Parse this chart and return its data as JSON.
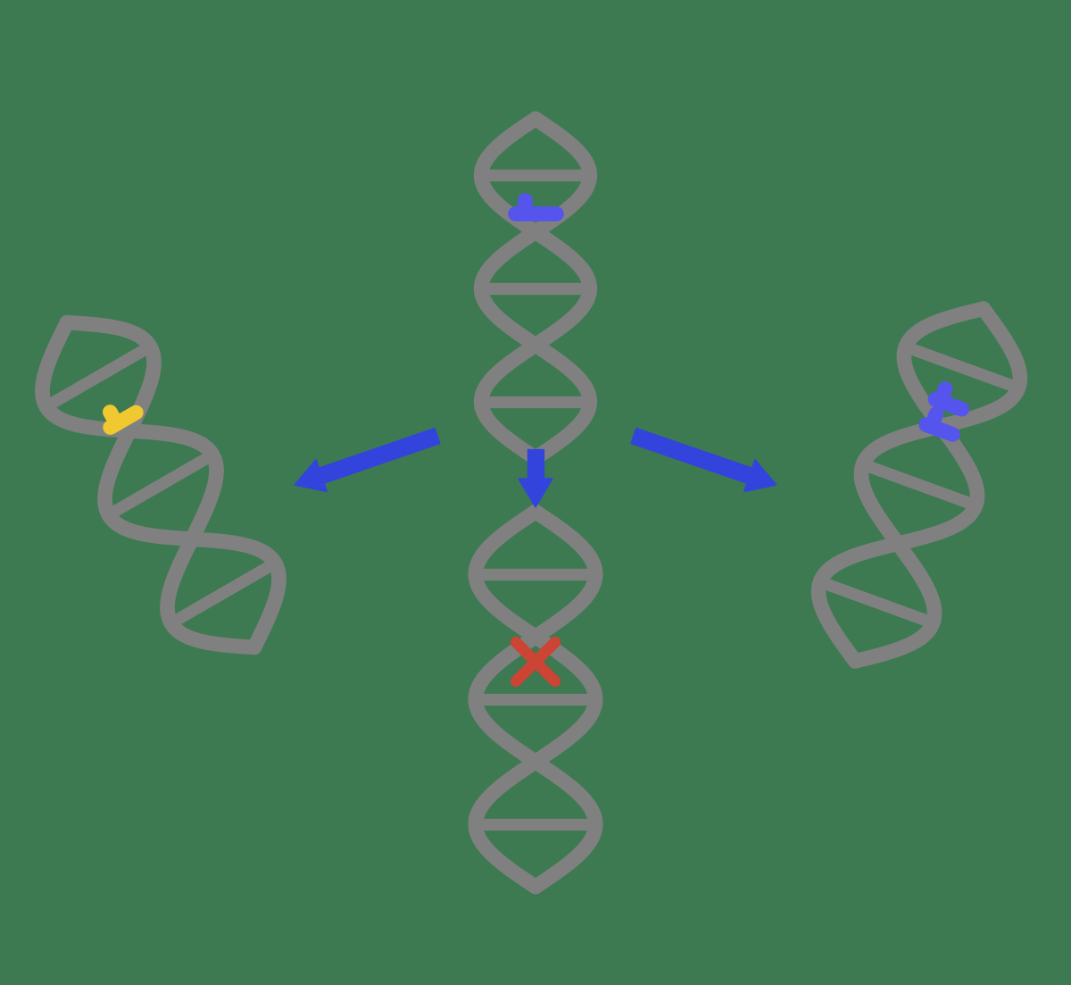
{
  "background_color": "#3d7a52",
  "dna_color": "#808080",
  "dna_lw": 12,
  "blue_base_color": "#5555ee",
  "yellow_base_color": "#f0c830",
  "red_x_color": "#cc4433",
  "arrow_color": "#3344dd",
  "figsize": [
    12.0,
    11.03
  ],
  "dpi": 100
}
